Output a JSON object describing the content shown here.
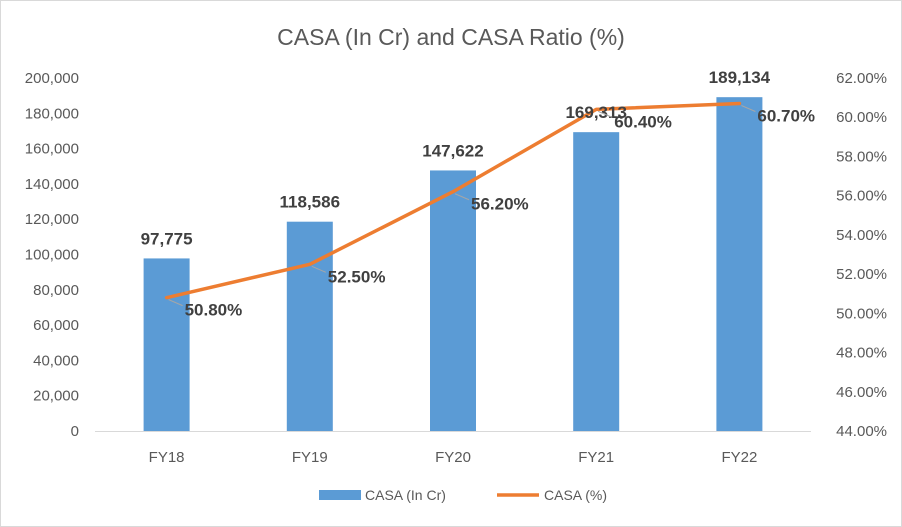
{
  "chart_data": {
    "type": "bar",
    "title": "CASA (In Cr) and CASA Ratio (%)",
    "categories": [
      "FY18",
      "FY19",
      "FY20",
      "FY21",
      "FY22"
    ],
    "series": [
      {
        "name": "CASA (In Cr)",
        "type": "bar",
        "axis": "left",
        "color": "#5b9bd5",
        "values": [
          97775,
          118586,
          147622,
          169313,
          189134
        ],
        "labels": [
          "97,775",
          "118,586",
          "147,622",
          "169,313",
          "189,134"
        ]
      },
      {
        "name": "CASA (%)",
        "type": "line",
        "axis": "right",
        "color": "#ed7d31",
        "values": [
          50.8,
          52.5,
          56.2,
          60.4,
          60.7
        ],
        "labels": [
          "50.80%",
          "52.50%",
          "56.20%",
          "60.40%",
          "60.70%"
        ]
      }
    ],
    "y_left": {
      "min": 0,
      "max": 200000,
      "step": 20000,
      "tick_labels": [
        "0",
        "20,000",
        "40,000",
        "60,000",
        "80,000",
        "100,000",
        "120,000",
        "140,000",
        "160,000",
        "180,000",
        "200,000"
      ]
    },
    "y_right": {
      "min": 44,
      "max": 62,
      "step": 2,
      "tick_labels": [
        "44.00%",
        "46.00%",
        "48.00%",
        "50.00%",
        "52.00%",
        "54.00%",
        "56.00%",
        "58.00%",
        "60.00%",
        "62.00%"
      ]
    },
    "legend": {
      "position": "bottom"
    },
    "grid": false
  }
}
